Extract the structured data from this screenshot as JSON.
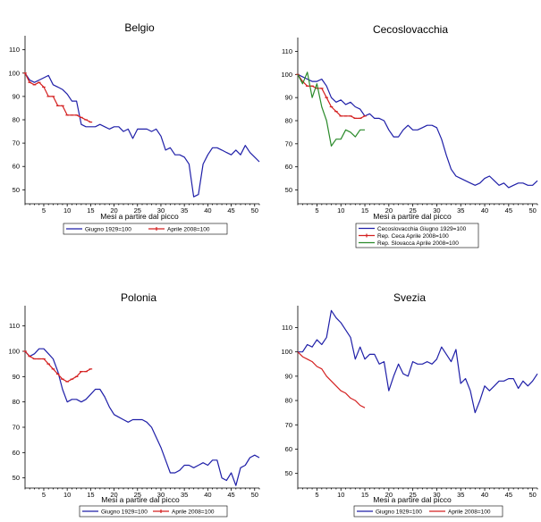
{
  "chart_data": [
    {
      "type": "line",
      "title": "Belgio",
      "xlabel": "Mesi a partire dal picco",
      "ylabel": "",
      "xlim": [
        1,
        51
      ],
      "ylim": [
        44,
        116
      ],
      "xticks": [
        5,
        10,
        15,
        20,
        25,
        30,
        35,
        40,
        45,
        50
      ],
      "yticks": [
        50,
        60,
        70,
        80,
        90,
        100,
        110
      ],
      "legend_position": "bottom",
      "series": [
        {
          "name": "Giugno 1929=100",
          "color": "#1f1fa8",
          "marker": false,
          "x": [
            1,
            2,
            3,
            4,
            5,
            6,
            7,
            8,
            9,
            10,
            11,
            12,
            13,
            14,
            15,
            16,
            17,
            18,
            19,
            20,
            21,
            22,
            23,
            24,
            25,
            26,
            27,
            28,
            29,
            30,
            31,
            32,
            33,
            34,
            35,
            36,
            37,
            38,
            39,
            40,
            41,
            42,
            43,
            44,
            45,
            46,
            47,
            48,
            49,
            50,
            51
          ],
          "y": [
            100,
            97,
            96,
            97,
            98,
            99,
            95,
            94,
            93,
            91,
            88,
            88,
            78,
            77,
            77,
            77,
            78,
            77,
            76,
            77,
            77,
            75,
            76,
            72,
            76,
            76,
            76,
            75,
            76,
            73,
            67,
            68,
            65,
            65,
            64,
            61,
            47,
            48,
            61,
            65,
            68,
            68,
            67,
            66,
            65,
            67,
            65,
            69,
            66,
            64,
            62
          ]
        },
        {
          "name": "Aprile 2008=100",
          "color": "#d42020",
          "marker": true,
          "x": [
            1,
            2,
            3,
            4,
            5,
            6,
            7,
            8,
            9,
            10,
            11,
            12,
            13,
            14,
            15
          ],
          "y": [
            100,
            96,
            95,
            96,
            94,
            90,
            90,
            86,
            86,
            82,
            82,
            82,
            81,
            80,
            79
          ]
        }
      ]
    },
    {
      "type": "line",
      "title": "Cecoslovacchia",
      "xlabel": "Mesi a partire dal picco",
      "ylabel": "",
      "xlim": [
        1,
        51
      ],
      "ylim": [
        44,
        116
      ],
      "xticks": [
        5,
        10,
        15,
        20,
        25,
        30,
        35,
        40,
        45,
        50
      ],
      "yticks": [
        50,
        60,
        70,
        80,
        90,
        100,
        110
      ],
      "legend_position": "bottom",
      "series": [
        {
          "name": "Cecoslovacchia  Giugno 1929=100",
          "color": "#1f1fa8",
          "marker": false,
          "x": [
            1,
            2,
            3,
            4,
            5,
            6,
            7,
            8,
            9,
            10,
            11,
            12,
            13,
            14,
            15,
            16,
            17,
            18,
            19,
            20,
            21,
            22,
            23,
            24,
            25,
            26,
            27,
            28,
            29,
            30,
            31,
            32,
            33,
            34,
            35,
            36,
            37,
            38,
            39,
            40,
            41,
            42,
            43,
            44,
            45,
            46,
            47,
            48,
            49,
            50,
            51
          ],
          "y": [
            100,
            99,
            98,
            97,
            97,
            98,
            95,
            90,
            88,
            89,
            87,
            88,
            86,
            85,
            82,
            83,
            81,
            81,
            80,
            76,
            73,
            73,
            76,
            78,
            76,
            76,
            77,
            78,
            78,
            77,
            72,
            65,
            59,
            56,
            55,
            54,
            53,
            52,
            53,
            55,
            56,
            54,
            52,
            53,
            51,
            52,
            53,
            53,
            52,
            52,
            54
          ]
        },
        {
          "name": "Rep. Ceca  Aprile 2008=100",
          "color": "#d42020",
          "marker": true,
          "x": [
            1,
            2,
            3,
            4,
            5,
            6,
            7,
            8,
            9,
            10,
            11,
            12,
            13,
            14,
            15
          ],
          "y": [
            100,
            97,
            95,
            95,
            94,
            94,
            90,
            86,
            84,
            82,
            82,
            82,
            81,
            81,
            82
          ]
        },
        {
          "name": "Rep. Slovacca  Aprile 2008=100",
          "color": "#2a8a2a",
          "marker": false,
          "x": [
            1,
            2,
            3,
            4,
            5,
            6,
            7,
            8,
            9,
            10,
            11,
            12,
            13,
            14,
            15
          ],
          "y": [
            100,
            96,
            101,
            90,
            96,
            86,
            80,
            69,
            72,
            72,
            76,
            75,
            73,
            76,
            76
          ]
        }
      ]
    },
    {
      "type": "line",
      "title": "Polonia",
      "xlabel": "Mesi a partire dal picco",
      "ylabel": "",
      "xlim": [
        1,
        51
      ],
      "ylim": [
        46,
        118
      ],
      "xticks": [
        5,
        10,
        15,
        20,
        25,
        30,
        35,
        40,
        45,
        50
      ],
      "yticks": [
        50,
        60,
        70,
        80,
        90,
        100,
        110
      ],
      "legend_position": "bottom",
      "series": [
        {
          "name": "Giugno 1929=100",
          "color": "#1f1fa8",
          "marker": false,
          "x": [
            1,
            2,
            3,
            4,
            5,
            6,
            7,
            8,
            9,
            10,
            11,
            12,
            13,
            14,
            15,
            16,
            17,
            18,
            19,
            20,
            21,
            22,
            23,
            24,
            25,
            26,
            27,
            28,
            29,
            30,
            31,
            32,
            33,
            34,
            35,
            36,
            37,
            38,
            39,
            40,
            41,
            42,
            43,
            44,
            45,
            46,
            47,
            48,
            49,
            50,
            51
          ],
          "y": [
            100,
            98,
            99,
            101,
            101,
            99,
            97,
            92,
            85,
            80,
            81,
            81,
            80,
            81,
            83,
            85,
            85,
            82,
            78,
            75,
            74,
            73,
            72,
            73,
            73,
            73,
            72,
            70,
            66,
            62,
            57,
            52,
            52,
            53,
            55,
            55,
            54,
            55,
            56,
            55,
            57,
            57,
            50,
            49,
            52,
            47,
            54,
            55,
            58,
            59,
            58
          ]
        },
        {
          "name": "Aprile 2008=100",
          "color": "#d42020",
          "marker": true,
          "x": [
            1,
            2,
            3,
            4,
            5,
            6,
            7,
            8,
            9,
            10,
            11,
            12,
            13,
            14,
            15
          ],
          "y": [
            100,
            98,
            97,
            97,
            97,
            95,
            93,
            91,
            89,
            88,
            89,
            90,
            92,
            92,
            93
          ]
        }
      ]
    },
    {
      "type": "line",
      "title": "Svezia",
      "xlabel": "Mesi a partire dal picco",
      "ylabel": "",
      "xlim": [
        1,
        51
      ],
      "ylim": [
        44,
        119
      ],
      "xticks": [
        5,
        10,
        15,
        20,
        25,
        30,
        35,
        40,
        45,
        50
      ],
      "yticks": [
        50,
        60,
        70,
        80,
        90,
        100,
        110
      ],
      "legend_position": "bottom",
      "series": [
        {
          "name": "Giugno 1929=100",
          "color": "#1f1fa8",
          "marker": false,
          "x": [
            1,
            2,
            3,
            4,
            5,
            6,
            7,
            8,
            9,
            10,
            11,
            12,
            13,
            14,
            15,
            16,
            17,
            18,
            19,
            20,
            21,
            22,
            23,
            24,
            25,
            26,
            27,
            28,
            29,
            30,
            31,
            32,
            33,
            34,
            35,
            36,
            37,
            38,
            39,
            40,
            41,
            42,
            43,
            44,
            45,
            46,
            47,
            48,
            49,
            50,
            51
          ],
          "y": [
            100,
            100,
            103,
            102,
            105,
            103,
            106,
            117,
            114,
            112,
            109,
            106,
            97,
            102,
            97,
            99,
            99,
            95,
            96,
            84,
            90,
            95,
            91,
            90,
            96,
            95,
            95,
            96,
            95,
            97,
            102,
            99,
            96,
            101,
            87,
            89,
            84,
            75,
            80,
            86,
            84,
            86,
            88,
            88,
            89,
            89,
            85,
            88,
            86,
            88,
            91
          ]
        },
        {
          "name": "Aprile 2008=100",
          "color": "#d42020",
          "marker": false,
          "x": [
            1,
            2,
            3,
            4,
            5,
            6,
            7,
            8,
            9,
            10,
            11,
            12,
            13,
            14,
            15
          ],
          "y": [
            100,
            98,
            97,
            96,
            94,
            93,
            90,
            88,
            86,
            84,
            83,
            81,
            80,
            78,
            77
          ]
        }
      ]
    }
  ]
}
